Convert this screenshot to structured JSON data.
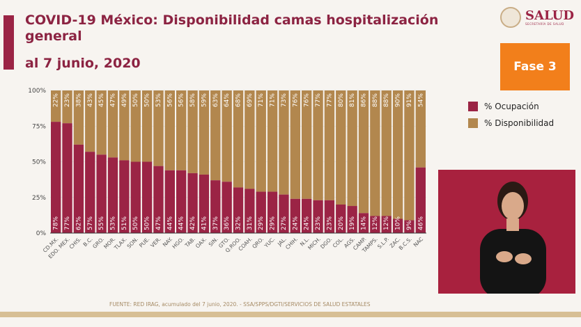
{
  "header": {
    "title": "COVID-19 México: Disponibilidad camas hospitalización general",
    "subtitle": "al 7 junio, 2020",
    "logo_text": "SALUD",
    "logo_subtext": "SECRETARÍA DE SALUD"
  },
  "phase_badge": "Fase 3",
  "footer": "FUENTE: RED IRAG, acumulado del 7 junio, 2020. -  SSA/SPPS/DGTI/SERVICIOS DE SALUD ESTATALES",
  "colors": {
    "ocupacion": "#9b2445",
    "disponibilidad": "#b2874e",
    "accent": "#f27f1b"
  },
  "chart_data": {
    "type": "bar",
    "stacked": true,
    "ylim": [
      0,
      100
    ],
    "yticks": [
      "0%",
      "25%",
      "50%",
      "75%",
      "100%"
    ],
    "legend_position": "right",
    "categories": [
      "CD.MX.",
      "EDO. MEX.",
      "CHIS.",
      "B.C.",
      "GRO.",
      "MOR.",
      "TLAX.",
      "SON.",
      "PUE.",
      "VER.",
      "NAY.",
      "HGO.",
      "TAB.",
      "OAX.",
      "SIN.",
      "GTO.",
      "Q.ROO.",
      "COAH.",
      "QRO.",
      "YUC.",
      "JAL.",
      "CHIH.",
      "N.L.",
      "MICH.",
      "DGO.",
      "COL.",
      "AGS.",
      "CAMP.",
      "TAMPS.",
      "S.L.P.",
      "ZAC.",
      "B.C.S.",
      "NAC"
    ],
    "series": [
      {
        "name": "% Ocupación",
        "values": [
          78,
          77,
          62,
          57,
          55,
          53,
          51,
          50,
          50,
          47,
          44,
          44,
          42,
          41,
          37,
          36,
          32,
          31,
          29,
          29,
          27,
          24,
          24,
          23,
          23,
          20,
          19,
          14,
          12,
          12,
          10,
          9,
          46
        ]
      },
      {
        "name": "% Disponibilidad",
        "values": [
          22,
          23,
          38,
          43,
          45,
          47,
          49,
          50,
          50,
          53,
          56,
          56,
          58,
          59,
          63,
          64,
          68,
          69,
          71,
          71,
          73,
          76,
          76,
          77,
          77,
          80,
          81,
          86,
          88,
          88,
          90,
          91,
          54
        ]
      }
    ]
  }
}
